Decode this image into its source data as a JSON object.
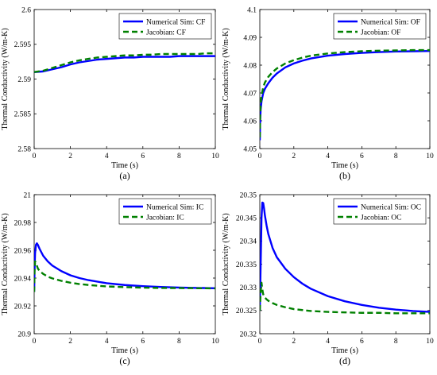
{
  "colors": {
    "numerical": "#0000ff",
    "jacobian": "#008000",
    "axis": "#000000"
  },
  "chart_data": [
    {
      "type": "line",
      "caption": "(a)",
      "xlabel": "Time (s)",
      "ylabel": "Thermal Conductivity (W/m-K)",
      "xlim": [
        0,
        10
      ],
      "ylim": [
        2.58,
        2.6
      ],
      "xticks": [
        0,
        2,
        4,
        6,
        8,
        10
      ],
      "yticks": [
        2.58,
        2.585,
        2.59,
        2.595,
        2.6
      ],
      "ytick_labels": [
        "2.58",
        "2.585",
        "2.59",
        "2.595",
        "2.6"
      ],
      "legend": "top-right",
      "grid": false,
      "x": [
        0,
        0.5,
        1,
        1.5,
        2,
        2.5,
        3,
        3.5,
        4,
        4.5,
        5,
        5.5,
        6,
        6.5,
        7,
        7.5,
        8,
        8.5,
        9,
        9.5,
        10
      ],
      "series": [
        {
          "name": "Numerical Sim: CF",
          "style": "solid",
          "values": [
            2.591,
            2.5911,
            2.5914,
            2.5917,
            2.5921,
            2.5924,
            2.5926,
            2.5928,
            2.5929,
            2.593,
            2.5931,
            2.5931,
            2.5932,
            2.5932,
            2.5932,
            2.5932,
            2.5933,
            2.5933,
            2.5933,
            2.5933,
            2.5933
          ]
        },
        {
          "name": "Jacobian: CF",
          "style": "dashed",
          "values": [
            2.591,
            2.5912,
            2.5916,
            2.592,
            2.5924,
            2.5927,
            2.5929,
            2.5931,
            2.5932,
            2.5933,
            2.5934,
            2.5934,
            2.5935,
            2.5935,
            2.5936,
            2.5936,
            2.5936,
            2.5936,
            2.5936,
            2.5937,
            2.5937
          ]
        }
      ]
    },
    {
      "type": "line",
      "caption": "(b)",
      "xlabel": "Time (s)",
      "ylabel": "Thermal Conductivity (W/m-K)",
      "xlim": [
        0,
        10
      ],
      "ylim": [
        4.05,
        4.1
      ],
      "xticks": [
        0,
        2,
        4,
        6,
        8,
        10
      ],
      "yticks": [
        4.05,
        4.06,
        4.07,
        4.08,
        4.09,
        4.1
      ],
      "ytick_labels": [
        "4.05",
        "4.06",
        "4.07",
        "4.08",
        "4.09",
        "4.1"
      ],
      "legend": "top-right",
      "grid": false,
      "x": [
        0,
        0.02,
        0.05,
        0.1,
        0.2,
        0.3,
        0.5,
        0.75,
        1,
        1.5,
        2,
        2.5,
        3,
        4,
        5,
        6,
        7,
        8,
        9,
        10
      ],
      "series": [
        {
          "name": "Numerical Sim: OF",
          "style": "solid",
          "values": [
            4.053,
            4.06,
            4.064,
            4.067,
            4.07,
            4.0715,
            4.0735,
            4.0755,
            4.077,
            4.0792,
            4.0806,
            4.0816,
            4.0824,
            4.0834,
            4.084,
            4.0844,
            4.0847,
            4.0849,
            4.085,
            4.0851
          ]
        },
        {
          "name": "Jacobian: OF",
          "style": "dashed",
          "values": [
            4.054,
            4.062,
            4.066,
            4.069,
            4.072,
            4.0738,
            4.0758,
            4.0775,
            4.0788,
            4.0806,
            4.0818,
            4.0827,
            4.0834,
            4.0842,
            4.0847,
            4.085,
            4.0852,
            4.0853,
            4.0854,
            4.0854
          ]
        }
      ]
    },
    {
      "type": "line",
      "caption": "(c)",
      "xlabel": "Time (s)",
      "ylabel": "Thermal Conductivity (W/m-K)",
      "xlim": [
        0,
        10
      ],
      "ylim": [
        20.9,
        21
      ],
      "xticks": [
        0,
        2,
        4,
        6,
        8,
        10
      ],
      "yticks": [
        20.9,
        20.92,
        20.94,
        20.96,
        20.98,
        21
      ],
      "ytick_labels": [
        "20.9",
        "20.92",
        "20.94",
        "20.96",
        "20.98",
        "21"
      ],
      "legend": "top-right",
      "grid": false,
      "x": [
        0,
        0.02,
        0.05,
        0.1,
        0.15,
        0.2,
        0.3,
        0.5,
        0.75,
        1,
        1.5,
        2,
        2.5,
        3,
        4,
        5,
        6,
        7,
        8,
        9,
        10
      ],
      "series": [
        {
          "name": "Numerical Sim: IC",
          "style": "solid",
          "values": [
            20.93,
            20.945,
            20.958,
            20.964,
            20.965,
            20.964,
            20.961,
            20.956,
            20.952,
            20.949,
            20.945,
            20.942,
            20.94,
            20.9385,
            20.9363,
            20.935,
            20.9342,
            20.9336,
            20.9332,
            20.9329,
            20.9327
          ]
        },
        {
          "name": "Jacobian: IC",
          "style": "dashed",
          "values": [
            20.93,
            20.945,
            20.952,
            20.951,
            20.949,
            20.947,
            20.945,
            20.943,
            20.941,
            20.9398,
            20.938,
            20.9367,
            20.9357,
            20.935,
            20.934,
            20.9335,
            20.9331,
            20.9329,
            20.9328,
            20.9327,
            20.9326
          ]
        }
      ]
    },
    {
      "type": "line",
      "caption": "(d)",
      "xlabel": "Time (s)",
      "ylabel": "Thermal Conductivity (W/m-K)",
      "xlim": [
        0,
        10
      ],
      "ylim": [
        20.32,
        20.35
      ],
      "xticks": [
        0,
        2,
        4,
        6,
        8,
        10
      ],
      "yticks": [
        20.32,
        20.325,
        20.33,
        20.335,
        20.34,
        20.345,
        20.35
      ],
      "ytick_labels": [
        "20.32",
        "20.325",
        "20.33",
        "20.335",
        "20.34",
        "20.345",
        "20.35"
      ],
      "legend": "top-right",
      "grid": false,
      "x": [
        0,
        0.05,
        0.1,
        0.15,
        0.2,
        0.25,
        0.3,
        0.4,
        0.5,
        0.75,
        1,
        1.5,
        2,
        2.5,
        3,
        4,
        5,
        6,
        7,
        8,
        9,
        10
      ],
      "series": [
        {
          "name": "Numerical Sim: OC",
          "style": "solid",
          "values": [
            20.325,
            20.335,
            20.345,
            20.3483,
            20.3482,
            20.347,
            20.3455,
            20.3433,
            20.3415,
            20.3385,
            20.3365,
            20.334,
            20.3322,
            20.3308,
            20.3297,
            20.3281,
            20.327,
            20.3262,
            20.3256,
            20.3252,
            20.3249,
            20.3247
          ]
        },
        {
          "name": "Jacobian: OC",
          "style": "dashed",
          "values": [
            20.325,
            20.329,
            20.331,
            20.3295,
            20.3285,
            20.3281,
            20.3278,
            20.3274,
            20.3271,
            20.3266,
            20.3262,
            20.3257,
            20.3253,
            20.3251,
            20.3249,
            20.3247,
            20.3246,
            20.3245,
            20.3245,
            20.3244,
            20.3244,
            20.3244
          ]
        }
      ]
    }
  ]
}
